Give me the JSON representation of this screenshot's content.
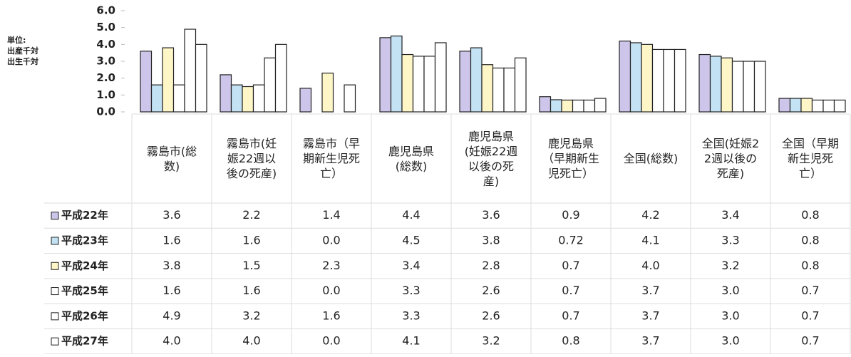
{
  "chart_data": {
    "type": "bar",
    "unit_label": [
      "単位:",
      "出産千対",
      "出生千対"
    ],
    "categories": [
      "霧島市(総数)",
      "霧島市(妊娠22週以後の死産)",
      "霧島市（早期新生児死亡）",
      "鹿児島県(総数)",
      "鹿児島県(妊娠22週以後の死産)",
      "鹿児島県（早期新生児死亡）",
      "全国(総数)",
      "全国(妊娠22週以後の死産)",
      "全国（早期新生児死亡）"
    ],
    "series": [
      {
        "name": "平成22年",
        "color": "#cdc6ea",
        "values": [
          3.6,
          2.2,
          1.4,
          4.4,
          3.6,
          0.9,
          4.2,
          3.4,
          0.8
        ],
        "value_labels": [
          "3.6",
          "2.2",
          "1.4",
          "4.4",
          "3.6",
          "0.9",
          "4.2",
          "3.4",
          "0.8"
        ]
      },
      {
        "name": "平成23年",
        "color": "#c3e2f3",
        "values": [
          1.6,
          1.6,
          0,
          4.5,
          3.8,
          0.72,
          4.1,
          3.3,
          0.8
        ],
        "value_labels": [
          "1.6",
          "1.6",
          "0.0",
          "4.5",
          "3.8",
          "0.72",
          "4.1",
          "3.3",
          "0.8"
        ]
      },
      {
        "name": "平成24年",
        "color": "#fff6c8",
        "values": [
          3.8,
          1.5,
          2.3,
          3.4,
          2.8,
          0.7,
          4,
          3.2,
          0.8
        ],
        "value_labels": [
          "3.8",
          "1.5",
          "2.3",
          "3.4",
          "2.8",
          "0.7",
          "4.0",
          "3.2",
          "0.8"
        ]
      },
      {
        "name": "平成25年",
        "color": "#ffffff",
        "values": [
          1.6,
          1.6,
          0,
          3.3,
          2.6,
          0.7,
          3.7,
          3,
          0.7
        ],
        "value_labels": [
          "1.6",
          "1.6",
          "0.0",
          "3.3",
          "2.6",
          "0.7",
          "3.7",
          "3.0",
          "0.7"
        ]
      },
      {
        "name": "平成26年",
        "color": "#ffffff",
        "values": [
          4.9,
          3.2,
          1.6,
          3.3,
          2.6,
          0.7,
          3.7,
          3,
          0.7
        ],
        "value_labels": [
          "4.9",
          "3.2",
          "1.6",
          "3.3",
          "2.6",
          "0.7",
          "3.7",
          "3.0",
          "0.7"
        ]
      },
      {
        "name": "平成27年",
        "color": "#ffffff",
        "values": [
          4,
          4,
          0,
          4.1,
          3.2,
          0.8,
          3.7,
          3,
          0.7
        ],
        "value_labels": [
          "4.0",
          "4.0",
          "0.0",
          "4.1",
          "3.2",
          "0.8",
          "3.7",
          "3.0",
          "0.7"
        ]
      }
    ],
    "ylim": [
      0,
      6
    ],
    "yticks": [
      {
        "value": 0,
        "label": "0.0"
      },
      {
        "value": 1,
        "label": "1.0"
      },
      {
        "value": 2,
        "label": "2.0"
      },
      {
        "value": 3,
        "label": "3.0"
      },
      {
        "value": 4,
        "label": "4.0"
      },
      {
        "value": 5,
        "label": "5.0"
      },
      {
        "value": 6,
        "label": "6.0"
      }
    ]
  }
}
